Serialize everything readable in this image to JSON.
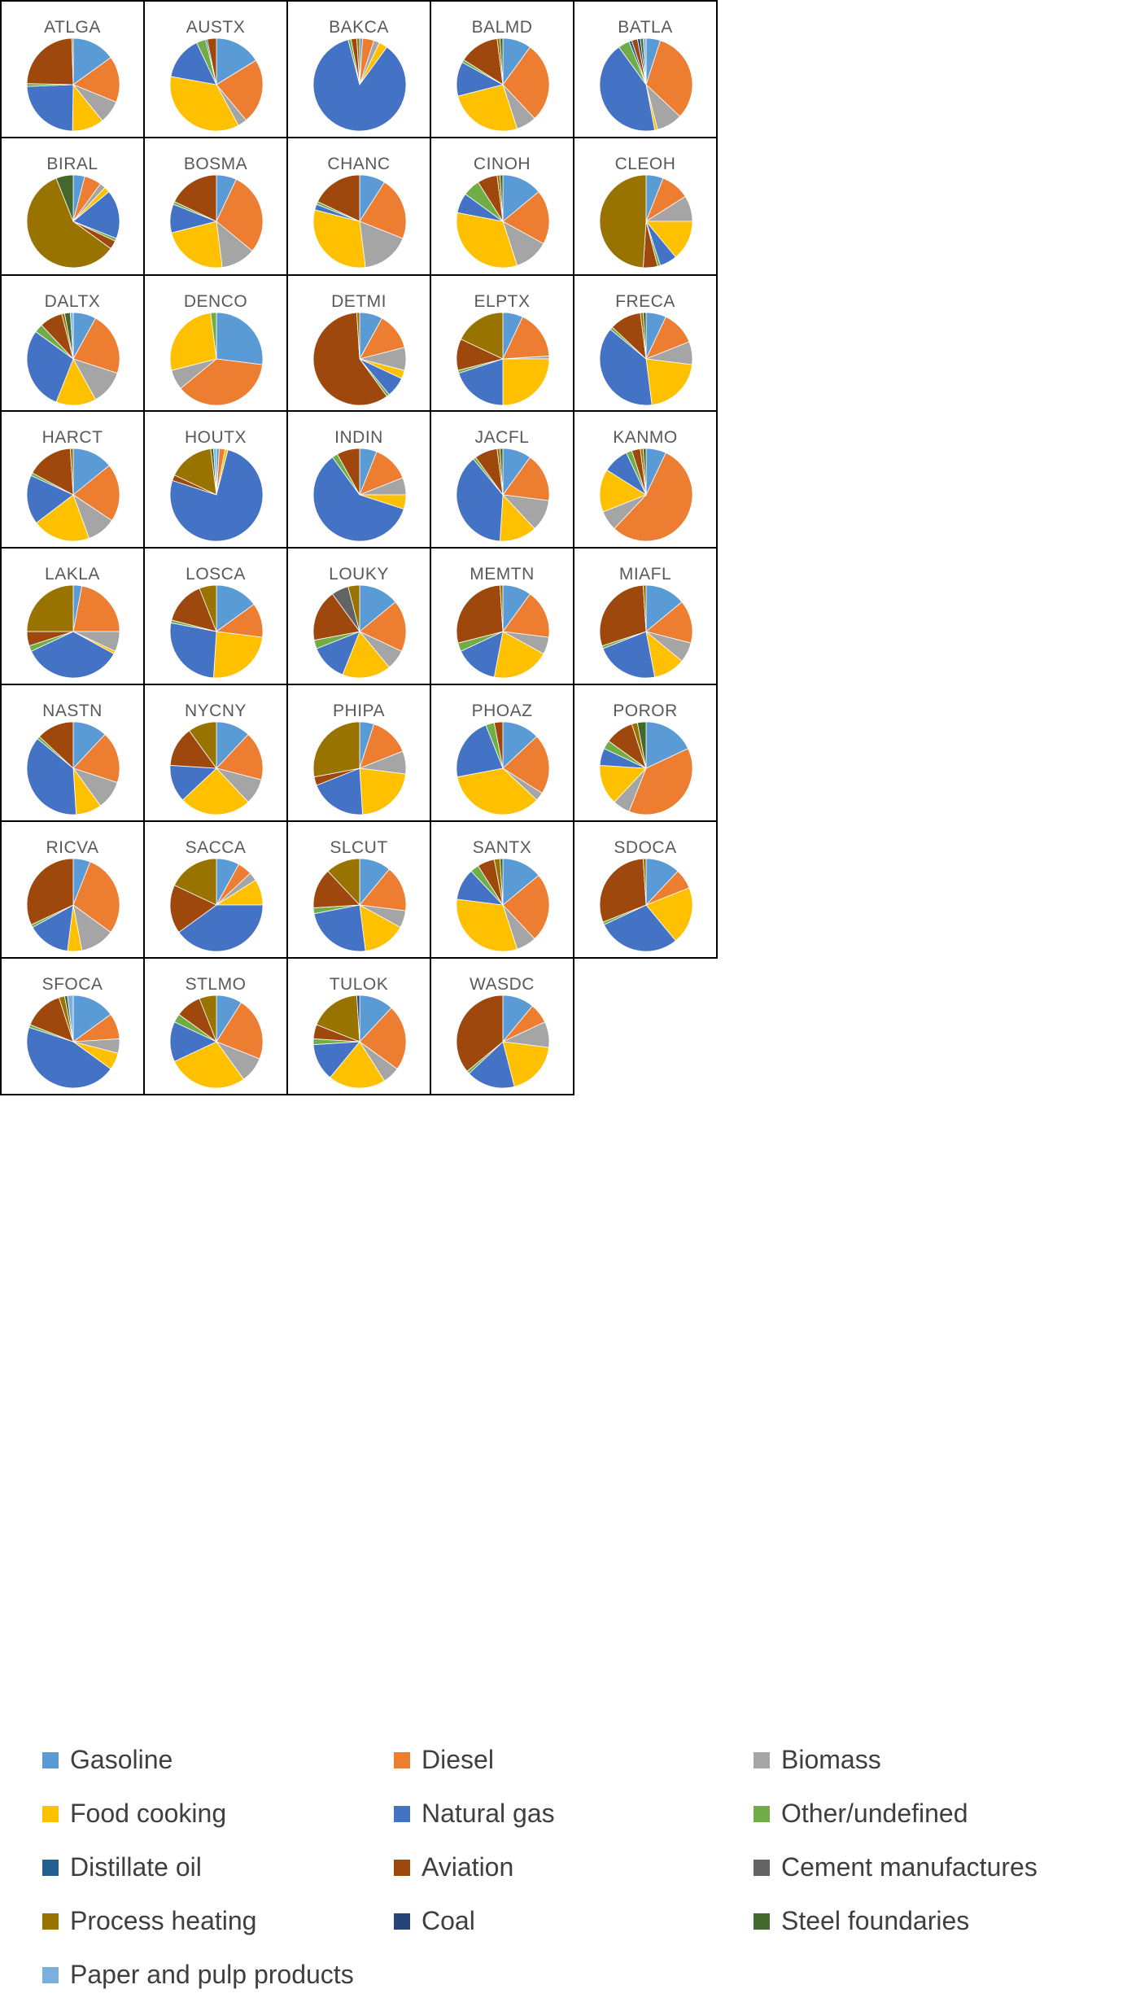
{
  "chart_data": {
    "type": "pie",
    "legend_position": "bottom",
    "categories": [
      "Gasoline",
      "Diesel",
      "Biomass",
      "Food cooking",
      "Natural gas",
      "Other/undefined",
      "Distillate oil",
      "Aviation",
      "Cement manufactures",
      "Process heating",
      "Coal",
      "Steel foundaries",
      "Paper and pulp products"
    ],
    "colors": {
      "Gasoline": "#5b9bd5",
      "Diesel": "#ed7d31",
      "Biomass": "#a5a5a5",
      "Food cooking": "#ffc000",
      "Natural gas": "#4472c4",
      "Other/undefined": "#70ad47",
      "Distillate oil": "#255e91",
      "Aviation": "#9e480e",
      "Cement manufactures": "#636363",
      "Process heating": "#997300",
      "Coal": "#264478",
      "Steel foundaries": "#43682b",
      "Paper and pulp products": "#7cafdd"
    },
    "charts": [
      {
        "title": "ATLGA",
        "values": {
          "Gasoline": 15,
          "Diesel": 16,
          "Biomass": 8,
          "Food cooking": 11,
          "Natural gas": 24,
          "Other/undefined": 1,
          "Aviation": 24,
          "Process heating": 0.5
        }
      },
      {
        "title": "AUSTX",
        "values": {
          "Gasoline": 15,
          "Diesel": 21,
          "Biomass": 3,
          "Food cooking": 33,
          "Natural gas": 14,
          "Other/undefined": 3,
          "Distillate oil": 0.5,
          "Aviation": 3
        }
      },
      {
        "title": "BAKCA",
        "values": {
          "Gasoline": 1,
          "Diesel": 4,
          "Biomass": 2,
          "Food cooking": 3,
          "Natural gas": 86,
          "Other/undefined": 1,
          "Aviation": 2,
          "Process heating": 1
        }
      },
      {
        "title": "BALMD",
        "values": {
          "Gasoline": 10,
          "Diesel": 28,
          "Biomass": 7,
          "Food cooking": 26,
          "Natural gas": 12,
          "Other/undefined": 1,
          "Aviation": 14,
          "Process heating": 1,
          "Steel foundaries": 1
        }
      },
      {
        "title": "BATLA",
        "values": {
          "Gasoline": 5,
          "Diesel": 32,
          "Biomass": 9,
          "Food cooking": 1,
          "Natural gas": 43,
          "Other/undefined": 4,
          "Distillate oil": 1,
          "Aviation": 2,
          "Coal": 1,
          "Steel foundaries": 1,
          "Paper and pulp products": 1
        }
      },
      {
        "title": "BIRAL",
        "values": {
          "Gasoline": 4,
          "Diesel": 6,
          "Biomass": 2,
          "Food cooking": 2,
          "Natural gas": 17,
          "Other/undefined": 1,
          "Aviation": 3,
          "Process heating": 59,
          "Steel foundaries": 6
        }
      },
      {
        "title": "BOSMA",
        "values": {
          "Gasoline": 7,
          "Diesel": 29,
          "Biomass": 12,
          "Food cooking": 23,
          "Natural gas": 10,
          "Other/undefined": 1,
          "Aviation": 18
        }
      },
      {
        "title": "CHANC",
        "values": {
          "Gasoline": 9,
          "Diesel": 22,
          "Biomass": 17,
          "Food cooking": 31,
          "Natural gas": 2,
          "Other/undefined": 1,
          "Aviation": 18
        }
      },
      {
        "title": "CINOH",
        "values": {
          "Gasoline": 14,
          "Diesel": 19,
          "Biomass": 12,
          "Food cooking": 33,
          "Natural gas": 7,
          "Other/undefined": 6,
          "Aviation": 7,
          "Process heating": 1,
          "Steel foundaries": 1
        }
      },
      {
        "title": "CLEOH",
        "values": {
          "Gasoline": 6,
          "Diesel": 10,
          "Biomass": 9,
          "Food cooking": 14,
          "Natural gas": 6,
          "Other/undefined": 1,
          "Aviation": 5,
          "Process heating": 49
        }
      },
      {
        "title": "DALTX",
        "values": {
          "Gasoline": 8,
          "Diesel": 22,
          "Biomass": 12,
          "Food cooking": 14,
          "Natural gas": 29,
          "Other/undefined": 3,
          "Aviation": 8,
          "Process heating": 1,
          "Steel foundaries": 2,
          "Paper and pulp products": 1
        }
      },
      {
        "title": "DENCO",
        "values": {
          "Gasoline": 27,
          "Diesel": 37,
          "Biomass": 7,
          "Food cooking": 27,
          "Other/undefined": 2
        }
      },
      {
        "title": "DETMI",
        "values": {
          "Gasoline": 8,
          "Diesel": 13,
          "Biomass": 8,
          "Food cooking": 3,
          "Natural gas": 7,
          "Other/undefined": 1,
          "Aviation": 59,
          "Process heating": 1
        }
      },
      {
        "title": "ELPTX",
        "values": {
          "Gasoline": 7,
          "Diesel": 17,
          "Biomass": 1,
          "Food cooking": 25,
          "Natural gas": 20,
          "Other/undefined": 1,
          "Aviation": 11,
          "Process heating": 18
        }
      },
      {
        "title": "FRECA",
        "values": {
          "Gasoline": 7,
          "Diesel": 12,
          "Biomass": 8,
          "Food cooking": 21,
          "Natural gas": 38,
          "Other/undefined": 1,
          "Aviation": 11,
          "Process heating": 1,
          "Steel foundaries": 1
        }
      },
      {
        "title": "HARCT",
        "values": {
          "Gasoline": 14,
          "Diesel": 20,
          "Biomass": 10,
          "Food cooking": 20,
          "Natural gas": 17,
          "Other/undefined": 1,
          "Aviation": 16,
          "Process heating": 1
        }
      },
      {
        "title": "HOUTX",
        "values": {
          "Gasoline": 1,
          "Diesel": 2,
          "Food cooking": 1,
          "Natural gas": 76,
          "Aviation": 2,
          "Process heating": 16,
          "Steel foundaries": 1,
          "Paper and pulp products": 1
        }
      },
      {
        "title": "INDIN",
        "values": {
          "Gasoline": 6,
          "Diesel": 13,
          "Biomass": 6,
          "Food cooking": 5,
          "Natural gas": 60,
          "Other/undefined": 2,
          "Aviation": 8
        }
      },
      {
        "title": "JACFL",
        "values": {
          "Gasoline": 10,
          "Diesel": 17,
          "Biomass": 11,
          "Food cooking": 13,
          "Natural gas": 38,
          "Other/undefined": 1,
          "Aviation": 8,
          "Process heating": 1,
          "Steel foundaries": 1
        }
      },
      {
        "title": "KANMO",
        "values": {
          "Gasoline": 7,
          "Diesel": 55,
          "Biomass": 7,
          "Food cooking": 15,
          "Natural gas": 9,
          "Other/undefined": 2,
          "Aviation": 3,
          "Process heating": 1,
          "Steel foundaries": 1
        }
      },
      {
        "title": "LAKLA",
        "values": {
          "Gasoline": 3,
          "Diesel": 22,
          "Biomass": 7,
          "Food cooking": 1,
          "Natural gas": 35,
          "Other/undefined": 2,
          "Aviation": 5,
          "Process heating": 25
        }
      },
      {
        "title": "LOSCA",
        "values": {
          "Gasoline": 15,
          "Diesel": 12,
          "Food cooking": 24,
          "Natural gas": 27,
          "Other/undefined": 1,
          "Aviation": 15,
          "Process heating": 6
        }
      },
      {
        "title": "LOUKY",
        "values": {
          "Gasoline": 14,
          "Diesel": 18,
          "Biomass": 7,
          "Food cooking": 17,
          "Natural gas": 13,
          "Other/undefined": 3,
          "Aviation": 18,
          "Cement manufactures": 6,
          "Process heating": 4
        }
      },
      {
        "title": "MEMTN",
        "values": {
          "Gasoline": 10,
          "Diesel": 17,
          "Biomass": 6,
          "Food cooking": 20,
          "Natural gas": 15,
          "Other/undefined": 3,
          "Aviation": 28,
          "Process heating": 1
        }
      },
      {
        "title": "MIAFL",
        "values": {
          "Gasoline": 14,
          "Diesel": 15,
          "Biomass": 7,
          "Food cooking": 11,
          "Natural gas": 22,
          "Other/undefined": 1,
          "Aviation": 29,
          "Process heating": 1
        }
      },
      {
        "title": "NASTN",
        "values": {
          "Gasoline": 12,
          "Diesel": 18,
          "Biomass": 10,
          "Food cooking": 9,
          "Natural gas": 37,
          "Other/undefined": 1,
          "Aviation": 13
        }
      },
      {
        "title": "NYCNY",
        "values": {
          "Gasoline": 12,
          "Diesel": 17,
          "Biomass": 9,
          "Food cooking": 25,
          "Natural gas": 13,
          "Aviation": 14,
          "Process heating": 10
        }
      },
      {
        "title": "PHIPA",
        "values": {
          "Gasoline": 5,
          "Diesel": 14,
          "Biomass": 8,
          "Food cooking": 22,
          "Natural gas": 20,
          "Aviation": 3,
          "Process heating": 28
        }
      },
      {
        "title": "PHOAZ",
        "values": {
          "Gasoline": 13,
          "Diesel": 21,
          "Biomass": 3,
          "Food cooking": 35,
          "Natural gas": 22,
          "Other/undefined": 3,
          "Aviation": 3
        }
      },
      {
        "title": "POROR",
        "values": {
          "Gasoline": 18,
          "Diesel": 38,
          "Biomass": 6,
          "Food cooking": 14,
          "Natural gas": 6,
          "Other/undefined": 3,
          "Aviation": 10,
          "Process heating": 2,
          "Steel foundaries": 3
        }
      },
      {
        "title": "RICVA",
        "values": {
          "Gasoline": 6,
          "Diesel": 29,
          "Biomass": 12,
          "Food cooking": 5,
          "Natural gas": 15,
          "Other/undefined": 1,
          "Aviation": 32
        }
      },
      {
        "title": "SACCA",
        "values": {
          "Gasoline": 8,
          "Diesel": 5,
          "Biomass": 3,
          "Food cooking": 9,
          "Natural gas": 40,
          "Aviation": 17,
          "Process heating": 18
        }
      },
      {
        "title": "SLCUT",
        "values": {
          "Gasoline": 11,
          "Diesel": 16,
          "Biomass": 6,
          "Food cooking": 15,
          "Natural gas": 24,
          "Other/undefined": 2,
          "Aviation": 14,
          "Process heating": 12
        }
      },
      {
        "title": "SANTX",
        "values": {
          "Gasoline": 14,
          "Diesel": 24,
          "Biomass": 7,
          "Food cooking": 32,
          "Natural gas": 11,
          "Other/undefined": 3,
          "Aviation": 6,
          "Process heating": 2,
          "Steel foundaries": 1
        }
      },
      {
        "title": "SDOCA",
        "values": {
          "Gasoline": 12,
          "Diesel": 7,
          "Food cooking": 20,
          "Natural gas": 29,
          "Other/undefined": 1,
          "Aviation": 30,
          "Process heating": 1
        }
      },
      {
        "title": "SFOCA",
        "values": {
          "Gasoline": 15,
          "Diesel": 9,
          "Biomass": 5,
          "Food cooking": 6,
          "Natural gas": 45,
          "Other/undefined": 1,
          "Aviation": 14,
          "Process heating": 2,
          "Steel foundaries": 1,
          "Paper and pulp products": 2
        }
      },
      {
        "title": "STLMO",
        "values": {
          "Gasoline": 9,
          "Diesel": 22,
          "Biomass": 9,
          "Food cooking": 28,
          "Natural gas": 14,
          "Other/undefined": 3,
          "Aviation": 9,
          "Process heating": 6
        }
      },
      {
        "title": "TULOK",
        "values": {
          "Gasoline": 12,
          "Diesel": 23,
          "Biomass": 6,
          "Food cooking": 20,
          "Natural gas": 13,
          "Other/undefined": 2,
          "Aviation": 5,
          "Process heating": 18,
          "Coal": 1
        }
      },
      {
        "title": "WASDC",
        "values": {
          "Gasoline": 11,
          "Diesel": 7,
          "Biomass": 9,
          "Food cooking": 19,
          "Natural gas": 17,
          "Other/undefined": 1,
          "Aviation": 36
        }
      }
    ]
  }
}
